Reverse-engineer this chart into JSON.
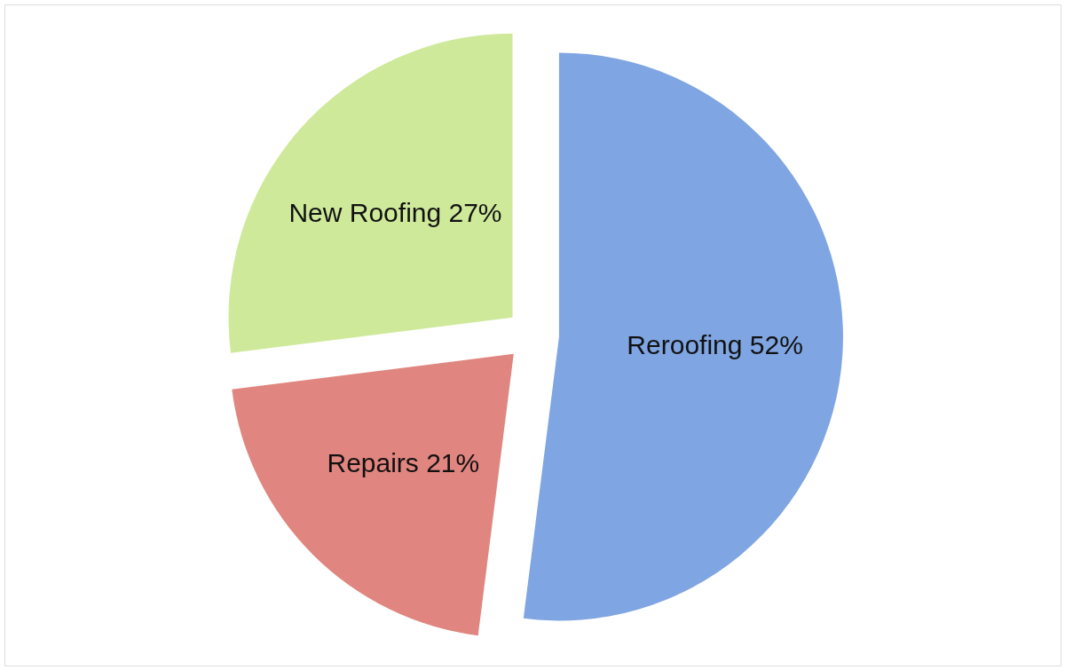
{
  "chart_data": {
    "type": "pie",
    "categories": [
      "Reroofing",
      "Repairs",
      "New Roofing"
    ],
    "values": [
      52,
      21,
      27
    ],
    "colors": [
      "#7fa5e2",
      "#e0857f",
      "#cfe99b"
    ],
    "value_labels": [
      "52%",
      "21%",
      "27%"
    ]
  }
}
